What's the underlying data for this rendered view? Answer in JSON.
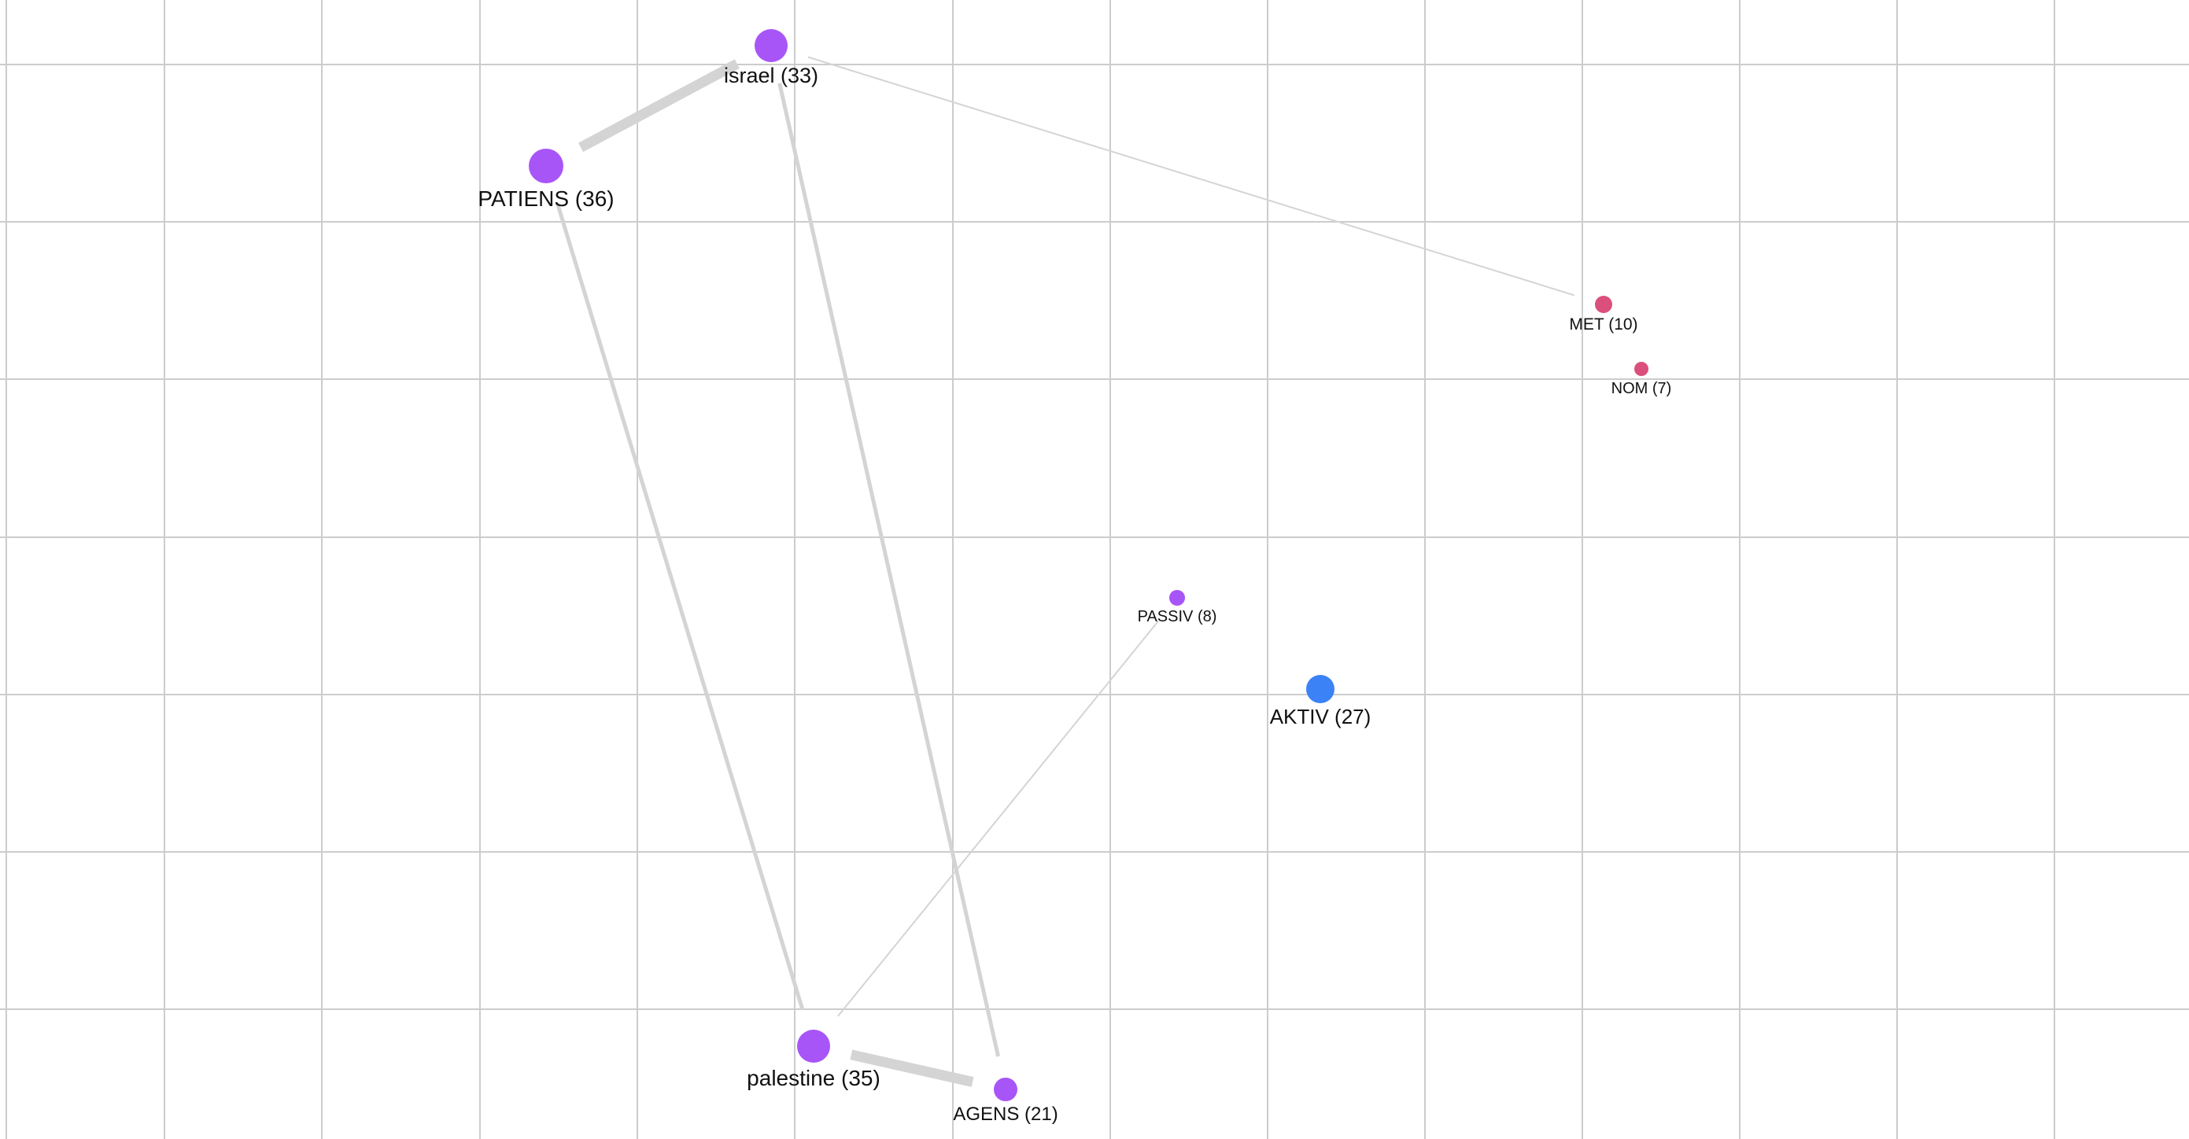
{
  "graph": {
    "colors": {
      "background": "#ffffff",
      "grid": "#cccccc",
      "edge": "#d4d4d4",
      "label": "#111111"
    },
    "nodes": [
      {
        "id": "israel",
        "label": "israel (33)",
        "color": "#a855f7"
      },
      {
        "id": "patiens",
        "label": "PATIENS (36)",
        "color": "#a855f7"
      },
      {
        "id": "met",
        "label": "MET (10)",
        "color": "#db4f7c"
      },
      {
        "id": "nom",
        "label": "NOM (7)",
        "color": "#db4f7c"
      },
      {
        "id": "passiv",
        "label": "PASSIV (8)",
        "color": "#a855f7"
      },
      {
        "id": "aktiv",
        "label": "AKTIV (27)",
        "color": "#3b82f6"
      },
      {
        "id": "palestine",
        "label": "palestine (35)",
        "color": "#a855f7"
      },
      {
        "id": "agens",
        "label": "AGENS (21)",
        "color": "#a855f7"
      }
    ],
    "edges": [
      {
        "source": "israel",
        "target": "patiens",
        "strength": "strong"
      },
      {
        "source": "israel",
        "target": "met",
        "strength": "weak"
      },
      {
        "source": "israel",
        "target": "agens",
        "strength": "medium"
      },
      {
        "source": "patiens",
        "target": "palestine",
        "strength": "medium"
      },
      {
        "source": "palestine",
        "target": "agens",
        "strength": "strong"
      },
      {
        "source": "palestine",
        "target": "passiv",
        "strength": "weak"
      }
    ]
  }
}
